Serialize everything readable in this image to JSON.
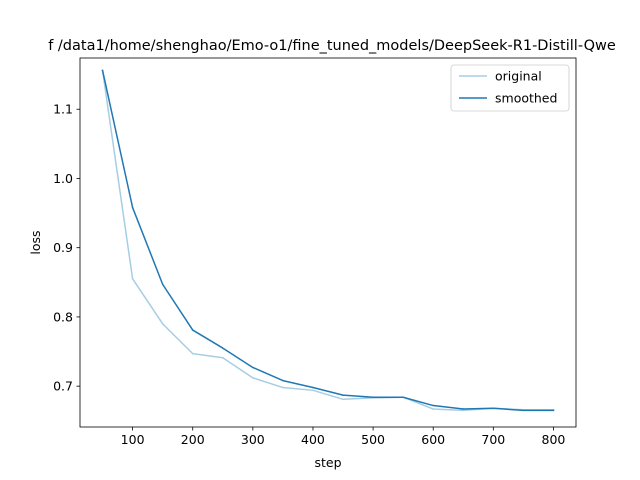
{
  "chart_data": {
    "type": "line",
    "title": "f /data1/home/shenghao/Emo-o1/fine_tuned_models/DeepSeek-R1-Distill-Qwe",
    "xlabel": "step",
    "ylabel": "loss",
    "xlim": [
      12.5,
      837.5
    ],
    "ylim": [
      0.641,
      1.174
    ],
    "xticks": [
      100,
      200,
      300,
      400,
      500,
      600,
      700,
      800
    ],
    "yticks": [
      0.7,
      0.8,
      0.9,
      1.0,
      1.1
    ],
    "xtick_labels": [
      "100",
      "200",
      "300",
      "400",
      "500",
      "600",
      "700",
      "800"
    ],
    "ytick_labels": [
      "0.7",
      "0.8",
      "0.9",
      "1.0",
      "1.1"
    ],
    "grid": false,
    "legend_position": "top-right",
    "x": [
      50,
      100,
      150,
      200,
      250,
      300,
      350,
      400,
      450,
      500,
      550,
      600,
      650,
      700,
      750,
      800
    ],
    "series": [
      {
        "name": "original",
        "color": "#a6cee3",
        "values": [
          1.156,
          0.855,
          0.79,
          0.747,
          0.741,
          0.712,
          0.698,
          0.694,
          0.681,
          0.683,
          0.684,
          0.667,
          0.665,
          0.668,
          0.666,
          0.666
        ]
      },
      {
        "name": "smoothed",
        "color": "#1f78b4",
        "values": [
          1.156,
          0.958,
          0.847,
          0.781,
          0.755,
          0.727,
          0.708,
          0.698,
          0.687,
          0.684,
          0.684,
          0.672,
          0.667,
          0.668,
          0.665,
          0.665
        ]
      }
    ]
  }
}
